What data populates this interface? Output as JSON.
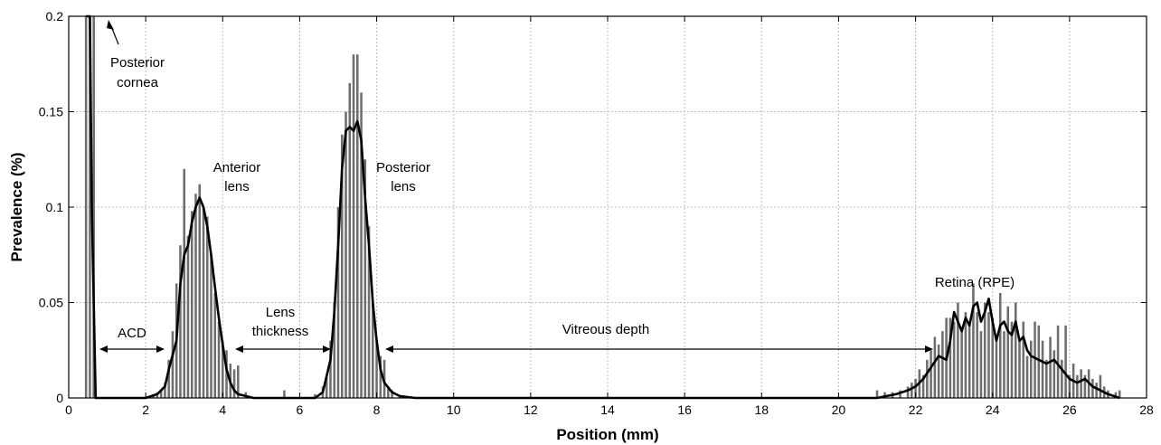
{
  "chart_data": {
    "type": "bar",
    "title": "",
    "xlabel": "Position (mm)",
    "ylabel": "Prevalence (%)",
    "xlim": [
      0,
      28
    ],
    "ylim": [
      0,
      0.2
    ],
    "grid": true,
    "x_ticks": [
      0,
      2,
      4,
      6,
      8,
      10,
      12,
      14,
      16,
      18,
      20,
      22,
      24,
      26,
      28
    ],
    "y_ticks": [
      0,
      0.05,
      0.1,
      0.15,
      0.2
    ],
    "x_tick_labels": [
      "0",
      "2",
      "4",
      "6",
      "8",
      "10",
      "12",
      "14",
      "16",
      "18",
      "20",
      "22",
      "24",
      "26",
      "28"
    ],
    "y_tick_labels": [
      "0",
      "0.05",
      "0.1",
      "0.15",
      "0.2"
    ],
    "bar_color": "#6e6e6e",
    "line_color": "#000000",
    "series": [
      {
        "type": "histogram",
        "bar_width": 0.06,
        "x": [
          0.45,
          0.55,
          0.65,
          2.2,
          2.3,
          2.4,
          2.5,
          2.6,
          2.7,
          2.8,
          2.9,
          3.0,
          3.1,
          3.2,
          3.3,
          3.4,
          3.5,
          3.6,
          3.7,
          3.8,
          3.9,
          4.0,
          4.1,
          4.2,
          4.3,
          4.4,
          4.6,
          5.6,
          6.4,
          6.6,
          6.7,
          6.8,
          6.9,
          7.0,
          7.1,
          7.2,
          7.3,
          7.4,
          7.5,
          7.6,
          7.7,
          7.8,
          7.9,
          8.0,
          8.1,
          8.2,
          8.3,
          8.4,
          8.6,
          21.0,
          21.2,
          21.4,
          21.6,
          21.8,
          21.9,
          22.0,
          22.1,
          22.2,
          22.3,
          22.4,
          22.5,
          22.6,
          22.7,
          22.8,
          22.9,
          23.0,
          23.1,
          23.2,
          23.3,
          23.4,
          23.5,
          23.6,
          23.7,
          23.8,
          23.9,
          24.0,
          24.1,
          24.2,
          24.3,
          24.4,
          24.5,
          24.6,
          24.7,
          24.8,
          24.9,
          25.0,
          25.1,
          25.2,
          25.3,
          25.4,
          25.5,
          25.6,
          25.7,
          25.8,
          25.9,
          26.0,
          26.1,
          26.2,
          26.3,
          26.4,
          26.5,
          26.6,
          26.7,
          26.8,
          26.9,
          27.0,
          27.2,
          27.3
        ],
        "values": [
          0.2,
          0.2,
          0.2,
          0.002,
          0.003,
          0.004,
          0.008,
          0.02,
          0.035,
          0.06,
          0.08,
          0.12,
          0.085,
          0.098,
          0.107,
          0.112,
          0.1,
          0.095,
          0.075,
          0.055,
          0.04,
          0.03,
          0.025,
          0.018,
          0.015,
          0.017,
          0.003,
          0.004,
          0.002,
          0.006,
          0.012,
          0.03,
          0.05,
          0.1,
          0.138,
          0.15,
          0.165,
          0.18,
          0.18,
          0.16,
          0.125,
          0.09,
          0.05,
          0.03,
          0.022,
          0.02,
          0.006,
          0.004,
          0.001,
          0.004,
          0.003,
          0.003,
          0.004,
          0.006,
          0.008,
          0.01,
          0.015,
          0.012,
          0.02,
          0.025,
          0.032,
          0.028,
          0.035,
          0.042,
          0.042,
          0.04,
          0.05,
          0.035,
          0.045,
          0.04,
          0.06,
          0.045,
          0.035,
          0.05,
          0.045,
          0.042,
          0.03,
          0.055,
          0.035,
          0.048,
          0.04,
          0.05,
          0.03,
          0.04,
          0.022,
          0.03,
          0.04,
          0.038,
          0.03,
          0.02,
          0.032,
          0.025,
          0.038,
          0.02,
          0.038,
          0.012,
          0.018,
          0.012,
          0.015,
          0.012,
          0.015,
          0.01,
          0.008,
          0.012,
          0.006,
          0.004,
          0.003,
          0.004
        ]
      },
      {
        "type": "line",
        "x": [
          0.45,
          0.55,
          0.6,
          0.7,
          1.5,
          2.0,
          2.3,
          2.5,
          2.6,
          2.8,
          2.9,
          3.0,
          3.1,
          3.2,
          3.3,
          3.4,
          3.5,
          3.6,
          3.7,
          3.8,
          3.9,
          4.0,
          4.1,
          4.2,
          4.3,
          4.4,
          4.6,
          4.8,
          5.0,
          6.4,
          6.6,
          6.8,
          6.9,
          7.0,
          7.1,
          7.2,
          7.3,
          7.4,
          7.5,
          7.6,
          7.7,
          7.8,
          7.9,
          8.0,
          8.1,
          8.2,
          8.4,
          8.6,
          9.0,
          21.0,
          21.5,
          21.8,
          22.0,
          22.2,
          22.4,
          22.6,
          22.8,
          22.9,
          23.0,
          23.1,
          23.2,
          23.3,
          23.4,
          23.5,
          23.6,
          23.7,
          23.8,
          23.9,
          24.0,
          24.1,
          24.2,
          24.3,
          24.4,
          24.5,
          24.6,
          24.7,
          24.8,
          24.9,
          25.0,
          25.2,
          25.4,
          25.6,
          25.8,
          26.0,
          26.2,
          26.4,
          26.6,
          26.8,
          27.0,
          27.3
        ],
        "values": [
          0.2,
          0.2,
          0.1,
          0.0,
          0.0,
          0.0,
          0.002,
          0.006,
          0.015,
          0.03,
          0.06,
          0.075,
          0.08,
          0.092,
          0.1,
          0.105,
          0.1,
          0.09,
          0.075,
          0.058,
          0.042,
          0.028,
          0.015,
          0.008,
          0.004,
          0.002,
          0.001,
          0.0,
          0.0,
          0.0,
          0.003,
          0.02,
          0.045,
          0.08,
          0.12,
          0.14,
          0.142,
          0.14,
          0.145,
          0.135,
          0.105,
          0.08,
          0.05,
          0.03,
          0.015,
          0.008,
          0.003,
          0.001,
          0.0,
          0.0,
          0.002,
          0.004,
          0.006,
          0.01,
          0.016,
          0.022,
          0.02,
          0.03,
          0.045,
          0.04,
          0.035,
          0.042,
          0.038,
          0.048,
          0.05,
          0.04,
          0.045,
          0.052,
          0.04,
          0.03,
          0.038,
          0.04,
          0.035,
          0.033,
          0.04,
          0.03,
          0.032,
          0.025,
          0.022,
          0.02,
          0.018,
          0.02,
          0.015,
          0.01,
          0.008,
          0.01,
          0.006,
          0.004,
          0.002,
          0.0
        ]
      }
    ],
    "annotations": {
      "posterior_cornea": [
        "Posterior",
        "cornea"
      ],
      "anterior_lens": [
        "Anterior",
        "lens"
      ],
      "posterior_lens": [
        "Posterior",
        "lens"
      ],
      "retina": [
        "Retina (RPE)"
      ],
      "acd": [
        "ACD"
      ],
      "lens_thickness": [
        "Lens",
        "thickness"
      ],
      "vitreous_depth": [
        "Vitreous depth"
      ]
    }
  }
}
